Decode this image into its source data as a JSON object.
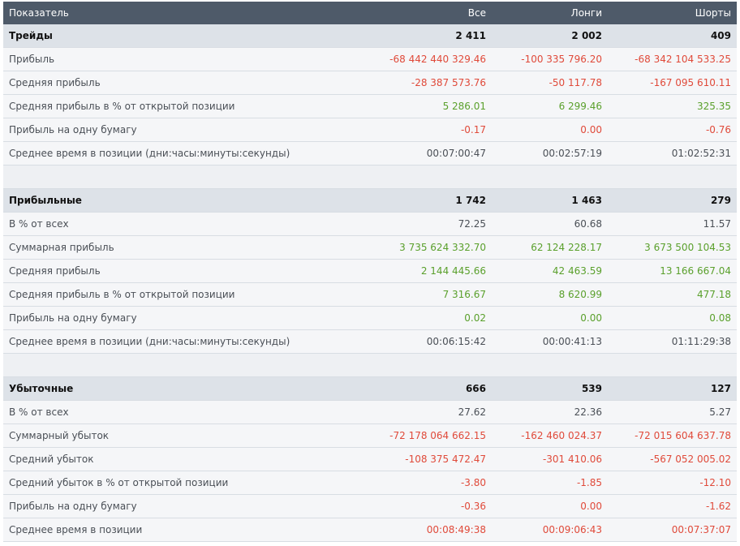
{
  "header": {
    "col_metric": "Показатель",
    "col_all": "Все",
    "col_longs": "Лонги",
    "col_shorts": "Шорты"
  },
  "colors": {
    "negative": "#e04a3a",
    "positive": "#5aa02c",
    "header_bg": "#4e5a69"
  },
  "sections": [
    {
      "title": "Трейды",
      "all": "2 411",
      "longs": "2 002",
      "shorts": "409",
      "rows": [
        {
          "label": "Прибыль",
          "all": "-68 442 440 329.46",
          "longs": "-100 335 796.20",
          "shorts": "-68 342 104 533.25"
        },
        {
          "label": "Средняя прибыль",
          "all": "-28 387 573.76",
          "longs": "-50 117.78",
          "shorts": "-167 095 610.11"
        },
        {
          "label": "Средняя прибыль в % от открытой позиции",
          "all": "5 286.01",
          "longs": "6 299.46",
          "shorts": "325.35"
        },
        {
          "label": "Прибыль на одну бумагу",
          "all": "-0.17",
          "longs": "0.00",
          "shorts": "-0.76"
        },
        {
          "label": "Среднее время в позиции (дни:часы:минуты:секунды)",
          "all": "00:07:00:47",
          "longs": "00:02:57:19",
          "shorts": "01:02:52:31"
        }
      ]
    },
    {
      "title": "Прибыльные",
      "all": "1 742",
      "longs": "1 463",
      "shorts": "279",
      "rows": [
        {
          "label": "В % от всех",
          "all": "72.25",
          "longs": "60.68",
          "shorts": "11.57"
        },
        {
          "label": "Суммарная прибыль",
          "all": "3 735 624 332.70",
          "longs": "62 124 228.17",
          "shorts": "3 673 500 104.53"
        },
        {
          "label": "Средняя прибыль",
          "all": "2 144 445.66",
          "longs": "42 463.59",
          "shorts": "13 166 667.04"
        },
        {
          "label": "Средняя прибыль в % от открытой позиции",
          "all": "7 316.67",
          "longs": "8 620.99",
          "shorts": "477.18"
        },
        {
          "label": "Прибыль на одну бумагу",
          "all": "0.02",
          "longs": "0.00",
          "shorts": "0.08"
        },
        {
          "label": "Среднее время в позиции (дни:часы:минуты:секунды)",
          "all": "00:06:15:42",
          "longs": "00:00:41:13",
          "shorts": "01:11:29:38"
        }
      ]
    },
    {
      "title": "Убыточные",
      "all": "666",
      "longs": "539",
      "shorts": "127",
      "rows": [
        {
          "label": "В % от всех",
          "all": "27.62",
          "longs": "22.36",
          "shorts": "5.27"
        },
        {
          "label": "Суммарный убыток",
          "all": "-72 178 064 662.15",
          "longs": "-162 460 024.37",
          "shorts": "-72 015 604 637.78"
        },
        {
          "label": "Средний убыток",
          "all": "-108 375 472.47",
          "longs": "-301 410.06",
          "shorts": "-567 052 005.02"
        },
        {
          "label": "Средний убыток в % от открытой позиции",
          "all": "-3.80",
          "longs": "-1.85",
          "shorts": "-12.10"
        },
        {
          "label": "Прибыль на одну бумагу",
          "all": "-0.36",
          "longs": "0.00",
          "shorts": "-1.62"
        },
        {
          "label": "Среднее время в позиции",
          "all": "00:08:49:38",
          "longs": "00:09:06:43",
          "shorts": "00:07:37:07"
        }
      ]
    }
  ]
}
